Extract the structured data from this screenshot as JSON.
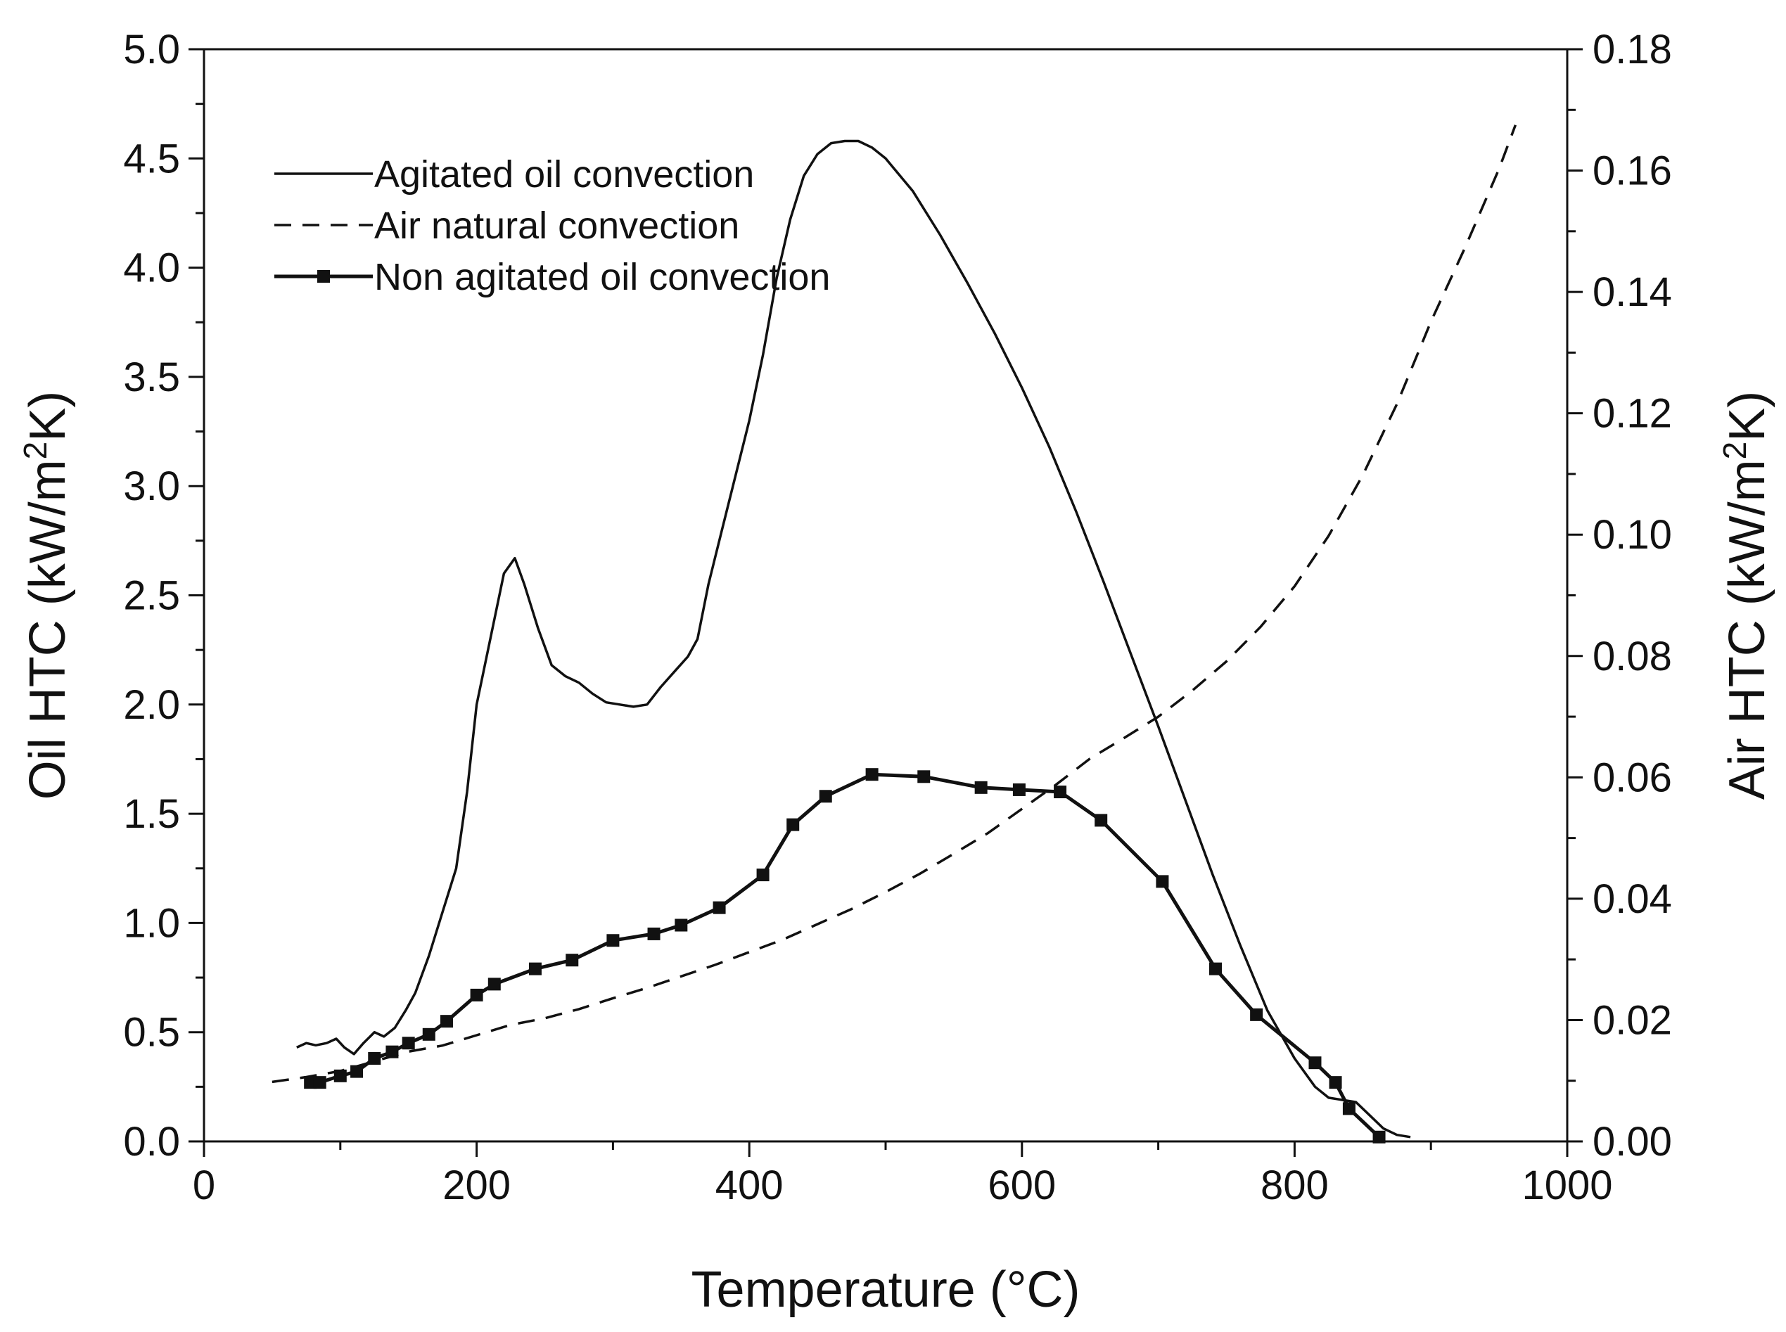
{
  "chart_data": {
    "type": "line",
    "title": "",
    "xlabel": "Temperature (°C)",
    "ylabel_left": {
      "main": "Oil HTC (kW/m",
      "sup": "2",
      "tail": "K)"
    },
    "ylabel_right": {
      "main": "Air HTC (kW/m",
      "sup": "2",
      "tail": "K)"
    },
    "xlim": [
      0,
      1000
    ],
    "ylim_left": [
      0,
      5.0
    ],
    "ylim_right": [
      0,
      0.18
    ],
    "x_ticks": [
      "0",
      "200",
      "400",
      "600",
      "800",
      "1000"
    ],
    "y_left_ticks": [
      "0.0",
      "0.5",
      "1.0",
      "1.5",
      "2.0",
      "2.5",
      "3.0",
      "3.5",
      "4.0",
      "4.5",
      "5.0"
    ],
    "y_right_ticks": [
      "0.00",
      "0.02",
      "0.04",
      "0.06",
      "0.08",
      "0.10",
      "0.12",
      "0.14",
      "0.16",
      "0.18"
    ],
    "grid": false,
    "legend_position": "top-left",
    "series": [
      {
        "name": "Agitated oil convection",
        "axis": "left",
        "style": "solid",
        "marker": "none",
        "x": [
          68,
          75,
          82,
          90,
          97,
          103,
          110,
          117,
          125,
          132,
          140,
          148,
          155,
          165,
          175,
          185,
          193,
          200,
          210,
          220,
          228,
          235,
          245,
          255,
          265,
          275,
          285,
          295,
          305,
          315,
          325,
          335,
          345,
          355,
          362,
          370,
          380,
          390,
          400,
          410,
          420,
          430,
          440,
          450,
          460,
          470,
          480,
          490,
          500,
          520,
          540,
          560,
          580,
          600,
          620,
          640,
          660,
          680,
          700,
          720,
          740,
          760,
          780,
          800,
          815,
          825,
          835,
          845,
          855,
          865,
          875,
          885
        ],
        "y": [
          0.43,
          0.45,
          0.44,
          0.45,
          0.47,
          0.43,
          0.4,
          0.45,
          0.5,
          0.48,
          0.52,
          0.6,
          0.68,
          0.85,
          1.05,
          1.25,
          1.6,
          2.0,
          2.3,
          2.6,
          2.67,
          2.55,
          2.35,
          2.18,
          2.13,
          2.1,
          2.05,
          2.01,
          2.0,
          1.99,
          2.0,
          2.08,
          2.15,
          2.22,
          2.3,
          2.55,
          2.8,
          3.05,
          3.3,
          3.6,
          3.95,
          4.22,
          4.42,
          4.52,
          4.57,
          4.58,
          4.58,
          4.55,
          4.5,
          4.35,
          4.15,
          3.93,
          3.7,
          3.45,
          3.18,
          2.88,
          2.56,
          2.23,
          1.9,
          1.56,
          1.22,
          0.9,
          0.6,
          0.38,
          0.25,
          0.2,
          0.19,
          0.18,
          0.12,
          0.06,
          0.03,
          0.02
        ]
      },
      {
        "name": "Air natural convection",
        "axis": "right",
        "style": "dashed",
        "marker": "none",
        "x": [
          50,
          75,
          100,
          125,
          150,
          175,
          200,
          225,
          250,
          275,
          300,
          325,
          350,
          375,
          400,
          425,
          450,
          475,
          500,
          525,
          550,
          575,
          600,
          625,
          650,
          675,
          700,
          725,
          750,
          775,
          800,
          825,
          850,
          875,
          900,
          925,
          950,
          962
        ],
        "y": [
          0.0098,
          0.0106,
          0.0116,
          0.0132,
          0.0148,
          0.0158,
          0.0175,
          0.0192,
          0.0203,
          0.0218,
          0.0236,
          0.0253,
          0.0272,
          0.0291,
          0.0312,
          0.0333,
          0.0358,
          0.0383,
          0.0411,
          0.0441,
          0.0474,
          0.0508,
          0.0548,
          0.0588,
          0.0631,
          0.0665,
          0.07,
          0.0743,
          0.0791,
          0.0848,
          0.0915,
          0.0998,
          0.1098,
          0.1215,
          0.1351,
          0.1473,
          0.1603,
          0.1675
        ]
      },
      {
        "name": "Non agitated oil convection",
        "axis": "left",
        "style": "solid",
        "marker": "square",
        "x": [
          78,
          85,
          100,
          112,
          125,
          138,
          150,
          165,
          178,
          200,
          213,
          243,
          270,
          300,
          330,
          350,
          378,
          410,
          432,
          456,
          490,
          528,
          570,
          598,
          628,
          658,
          703,
          742,
          772,
          815,
          830,
          840,
          862
        ],
        "y": [
          0.27,
          0.27,
          0.3,
          0.32,
          0.38,
          0.41,
          0.45,
          0.49,
          0.55,
          0.67,
          0.72,
          0.79,
          0.83,
          0.92,
          0.95,
          0.99,
          1.07,
          1.22,
          1.45,
          1.58,
          1.68,
          1.67,
          1.62,
          1.61,
          1.6,
          1.47,
          1.19,
          0.79,
          0.58,
          0.36,
          0.27,
          0.15,
          0.02
        ]
      }
    ]
  }
}
